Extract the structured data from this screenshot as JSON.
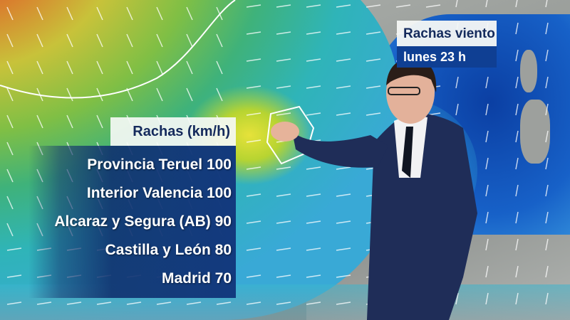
{
  "title_panel": {
    "title": "Rachas viento",
    "subtitle": "lunes 23 h"
  },
  "legend": {
    "header": "Rachas (km/h)",
    "rows": [
      "Provincia Teruel 100",
      "Interior Valencia 100",
      "Alcaraz y Segura (AB) 90",
      "Castilla y León 80",
      "Madrid 70"
    ]
  },
  "colors": {
    "panel_blue": "#133a7e",
    "title_text": "#142a5c",
    "sea": "#1761c8"
  }
}
